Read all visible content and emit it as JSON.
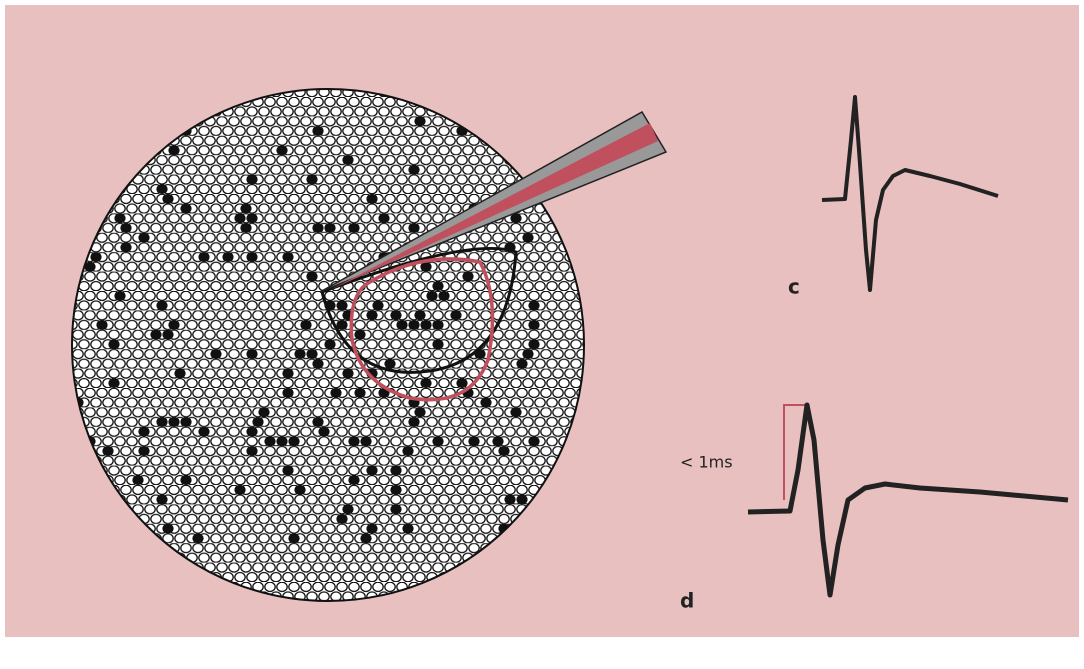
{
  "labels": {
    "c": "c",
    "scale": "< 1ms",
    "d": "d"
  }
}
